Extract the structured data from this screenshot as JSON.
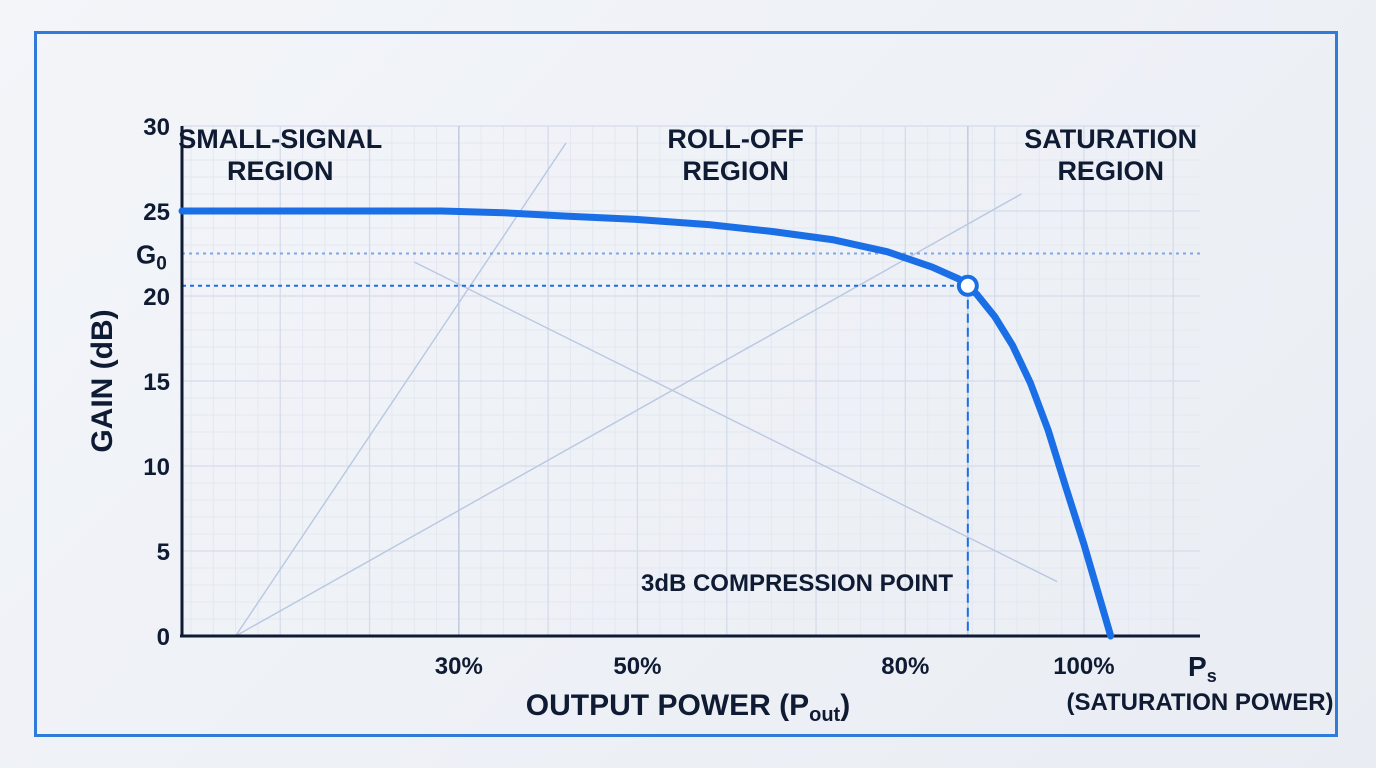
{
  "chart_data": {
    "type": "line",
    "title": "",
    "xlabel": "OUTPUT POWER (P",
    "xlabel_sub": "out",
    "xlabel_close": ")",
    "ylabel": "GAIN (dB)",
    "xlim": [
      -1,
      113
    ],
    "ylim": [
      0,
      30
    ],
    "y_ticks": [
      "0",
      "5",
      "10",
      "15",
      "20",
      "25",
      "30"
    ],
    "x_tick_labels": [
      {
        "x": 30,
        "label": "30%"
      },
      {
        "x": 50,
        "label": "50%"
      },
      {
        "x": 80,
        "label": "80%"
      },
      {
        "x": 100,
        "label": "100%"
      }
    ],
    "ps_label": "P",
    "ps_sub": "s",
    "ps_caption": "(SATURATION POWER)",
    "g0_label": "G",
    "g0_sub": "0",
    "g0_value": 22.5,
    "grid": true,
    "regions": [
      {
        "lines": [
          "SMALL-SIGNAL",
          "REGION"
        ],
        "x": 10
      },
      {
        "lines": [
          "ROLL-OFF",
          "REGION"
        ],
        "x": 61
      },
      {
        "lines": [
          "SATURATION",
          "REGION"
        ],
        "x": 103
      }
    ],
    "region_boundaries": [
      30,
      87
    ],
    "series": [
      {
        "x": [
          -1,
          10,
          20,
          28,
          35,
          42,
          50,
          58,
          65,
          72,
          78,
          83,
          86,
          87,
          88,
          90,
          92,
          94,
          96,
          98,
          100,
          102,
          103
        ],
        "y": [
          25,
          25,
          25,
          25,
          24.9,
          24.7,
          24.5,
          24.2,
          23.8,
          23.3,
          22.6,
          21.7,
          21,
          20.6,
          20.1,
          18.8,
          17.1,
          14.9,
          12.1,
          8.7,
          5.4,
          1.8,
          0
        ]
      }
    ],
    "annotations": [
      {
        "text": "3dB COMPRESSION POINT",
        "x": 87,
        "y": 20.6
      }
    ],
    "guide_lines": [
      {
        "x1": 5,
        "y1": 0,
        "x2": 42,
        "y2": 29
      },
      {
        "x1": 5,
        "y1": 0,
        "x2": 93,
        "y2": 26
      },
      {
        "x1": 25,
        "y1": 22,
        "x2": 97,
        "y2": 3.2
      }
    ],
    "colors": {
      "curve": "#1a6fe6",
      "axis": "#0f1a33",
      "grid": "#d5dcea",
      "dotted": "#7fa6e8",
      "guide": "#b9c7e2"
    }
  }
}
